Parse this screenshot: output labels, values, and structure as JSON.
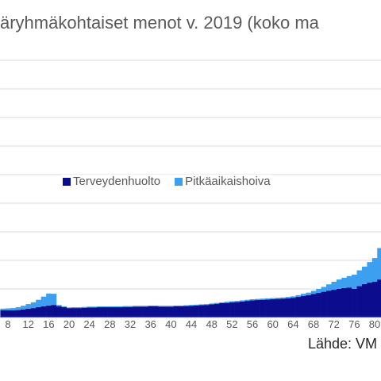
{
  "chart_data": {
    "type": "bar",
    "stacked": true,
    "title": "äryhmäkohtaiset menot v. 2019 (koko ma",
    "x": [
      7,
      8,
      9,
      10,
      11,
      12,
      13,
      14,
      15,
      16,
      17,
      18,
      19,
      20,
      21,
      22,
      23,
      24,
      25,
      26,
      27,
      28,
      29,
      30,
      31,
      32,
      33,
      34,
      35,
      36,
      37,
      38,
      39,
      40,
      41,
      42,
      43,
      44,
      45,
      46,
      47,
      48,
      49,
      50,
      51,
      52,
      53,
      54,
      55,
      56,
      57,
      58,
      59,
      60,
      61,
      62,
      63,
      64,
      65,
      66,
      67,
      68,
      69,
      70,
      71,
      72,
      73,
      74,
      75,
      76,
      77,
      78,
      79,
      80,
      81
    ],
    "x_tick_labels": [
      "8",
      "12",
      "16",
      "20",
      "24",
      "28",
      "32",
      "36",
      "40",
      "44",
      "48",
      "52",
      "56",
      "60",
      "64",
      "68",
      "72",
      "76",
      "80"
    ],
    "series": [
      {
        "name": "Terveydenhuolto",
        "color": "#0c0c8e",
        "values": [
          0.25,
          0.25,
          0.25,
          0.26,
          0.28,
          0.31,
          0.33,
          0.36,
          0.39,
          0.42,
          0.44,
          0.39,
          0.36,
          0.33,
          0.33,
          0.33,
          0.34,
          0.35,
          0.35,
          0.36,
          0.36,
          0.36,
          0.36,
          0.36,
          0.37,
          0.37,
          0.38,
          0.38,
          0.38,
          0.39,
          0.39,
          0.38,
          0.38,
          0.38,
          0.39,
          0.39,
          0.4,
          0.41,
          0.42,
          0.43,
          0.44,
          0.46,
          0.48,
          0.5,
          0.51,
          0.53,
          0.54,
          0.56,
          0.58,
          0.6,
          0.61,
          0.62,
          0.63,
          0.64,
          0.65,
          0.66,
          0.67,
          0.69,
          0.72,
          0.75,
          0.78,
          0.82,
          0.86,
          0.9,
          0.94,
          0.97,
          1.0,
          1.03,
          1.05,
          1.0,
          1.1,
          1.17,
          1.22,
          1.25,
          1.33
        ]
      },
      {
        "name": "Pitkäaikaishoiva",
        "color": "#3d9ff0",
        "values": [
          0.06,
          0.07,
          0.08,
          0.1,
          0.13,
          0.16,
          0.2,
          0.26,
          0.34,
          0.42,
          0.39,
          0.05,
          0.03,
          0.02,
          0.03,
          0.03,
          0.03,
          0.03,
          0.03,
          0.03,
          0.03,
          0.03,
          0.03,
          0.03,
          0.03,
          0.03,
          0.03,
          0.03,
          0.03,
          0.03,
          0.03,
          0.03,
          0.03,
          0.03,
          0.03,
          0.03,
          0.03,
          0.03,
          0.03,
          0.03,
          0.03,
          0.03,
          0.03,
          0.03,
          0.04,
          0.04,
          0.04,
          0.04,
          0.04,
          0.04,
          0.04,
          0.04,
          0.04,
          0.04,
          0.04,
          0.04,
          0.05,
          0.05,
          0.06,
          0.08,
          0.09,
          0.11,
          0.14,
          0.17,
          0.22,
          0.28,
          0.33,
          0.36,
          0.4,
          0.5,
          0.55,
          0.61,
          0.72,
          0.83,
          1.1
        ]
      }
    ],
    "ylim": [
      0,
      9
    ],
    "grid": true,
    "legend_position": "center",
    "gridline_color": "#d9d9d9",
    "axis_color": "#bfbfbf"
  },
  "source": "Lähde: VM"
}
